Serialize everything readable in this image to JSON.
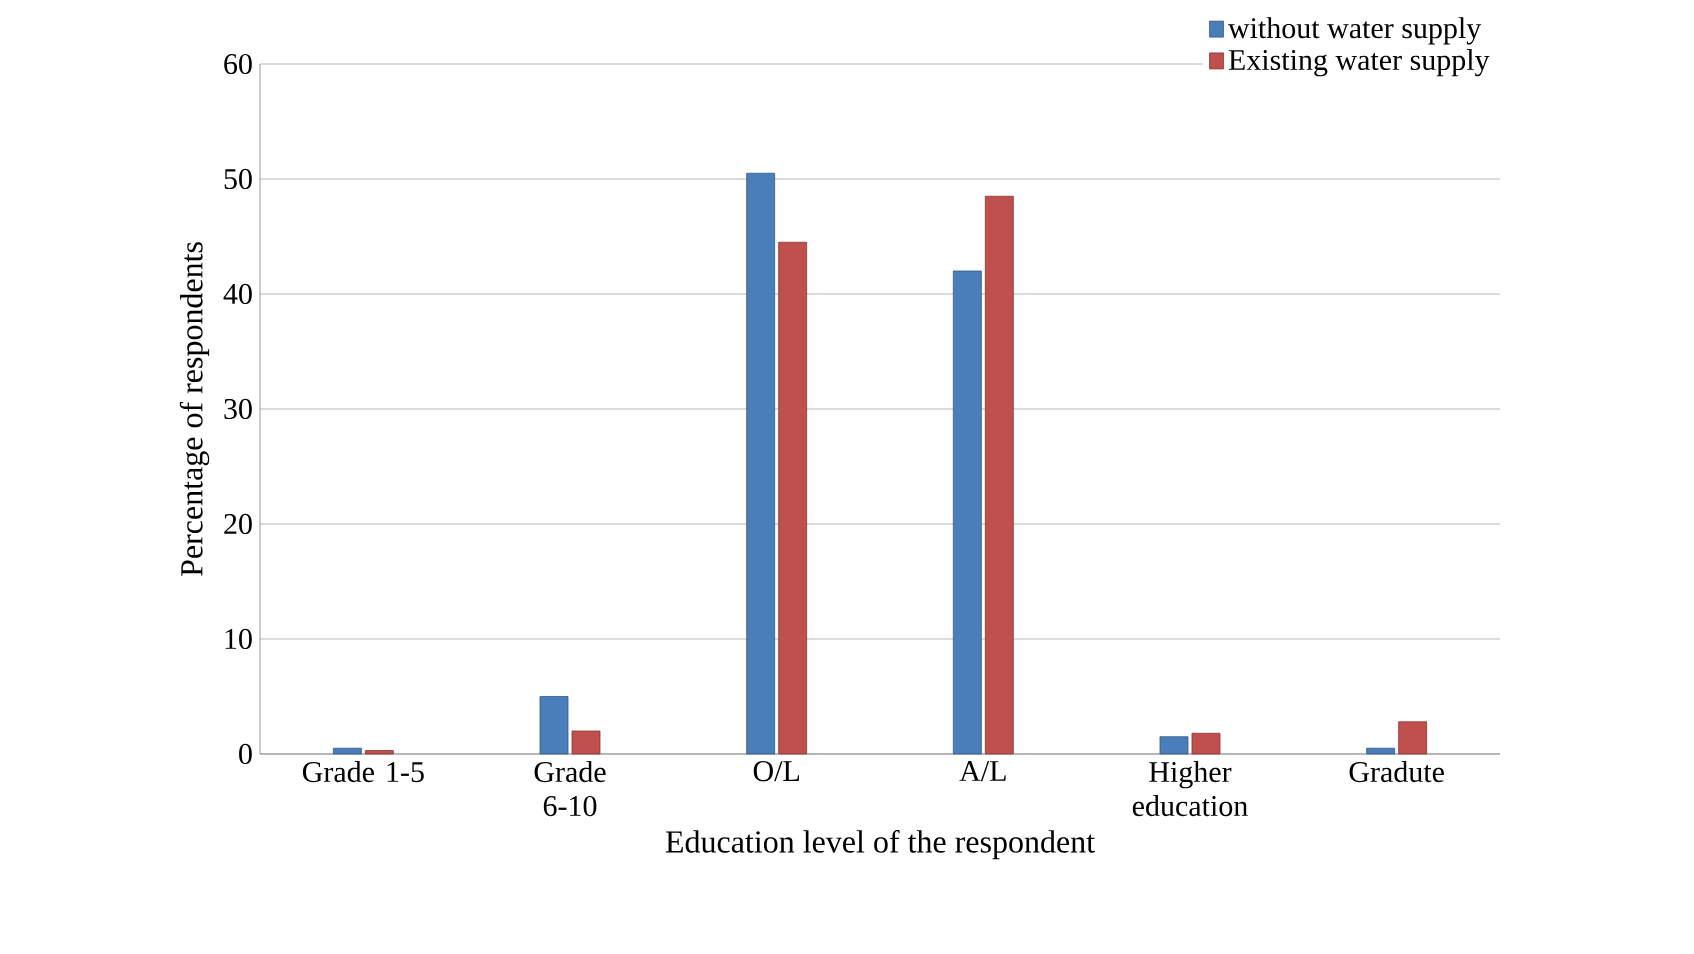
{
  "chart_data": {
    "type": "bar",
    "xlabel": "Education level of the respondent",
    "ylabel": "Percentage of respondents",
    "categories": [
      "Grade 1-5",
      "Grade 6-10",
      "O/L",
      "A/L",
      "Higher education",
      "Gradute"
    ],
    "series": [
      {
        "name": "without water supply",
        "color": "#4a7ebb",
        "values": [
          0.5,
          5,
          50.5,
          42,
          1.5,
          0.5
        ]
      },
      {
        "name": "Existing water supply",
        "color": "#c0504d",
        "values": [
          0.3,
          2,
          44.5,
          48.5,
          1.8,
          2.8
        ]
      }
    ],
    "ylim": [
      0,
      60
    ],
    "yticks": [
      0,
      10,
      20,
      30,
      40,
      50,
      60
    ],
    "grid": "y",
    "legend": "top right"
  }
}
